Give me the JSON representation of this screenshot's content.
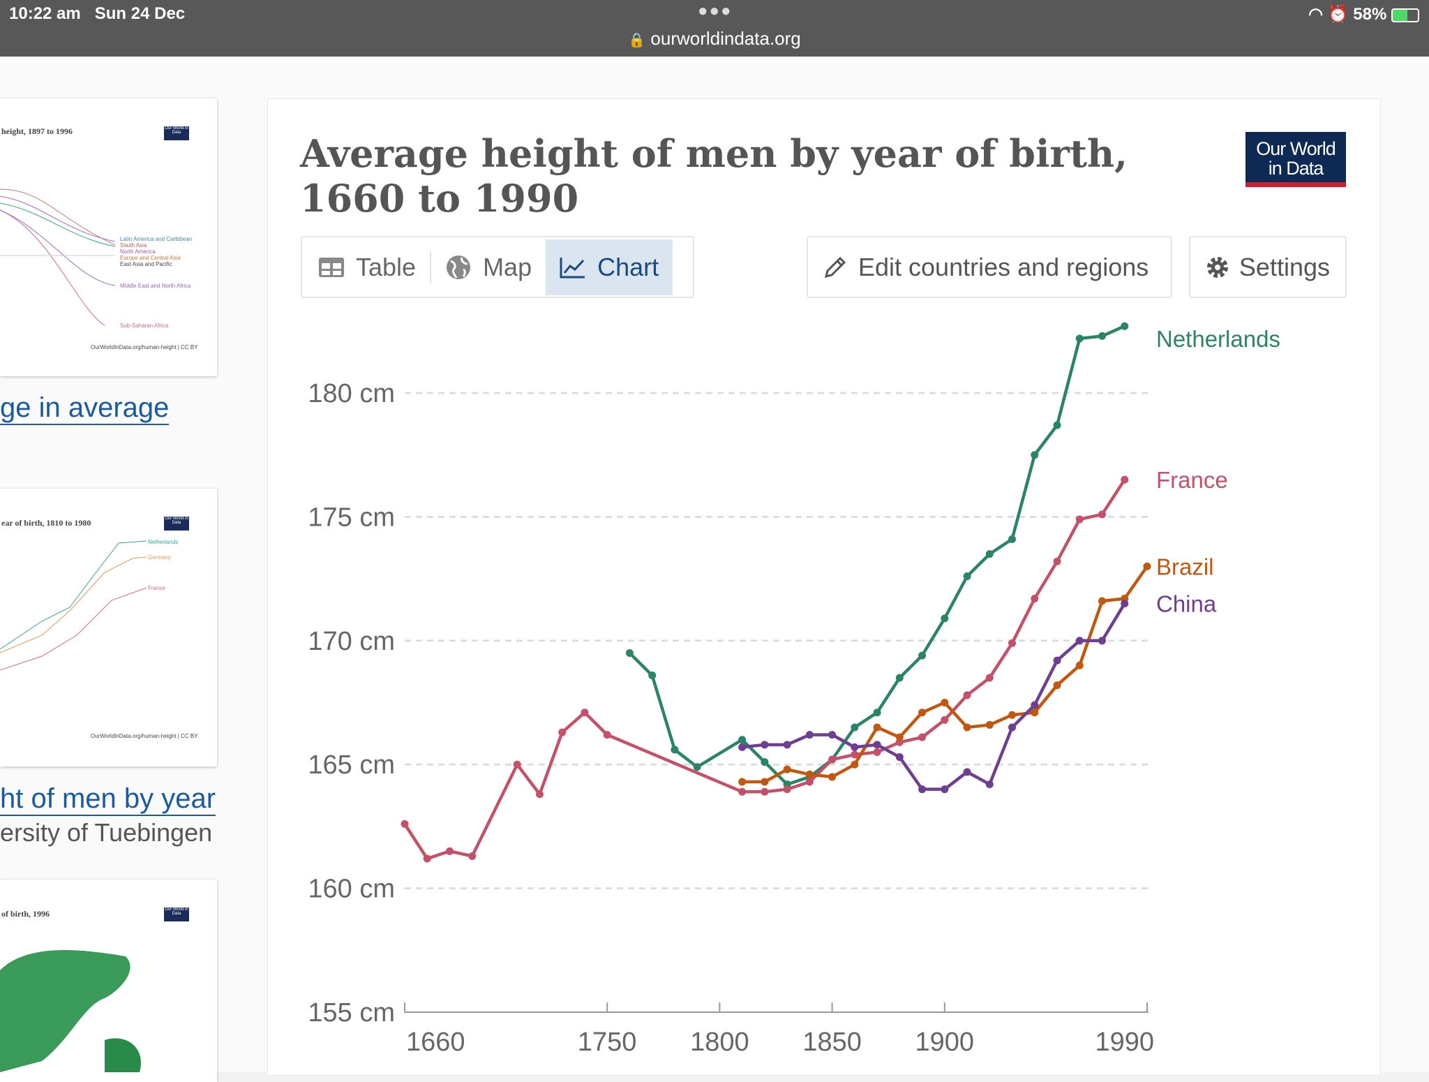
{
  "status_bar": {
    "time": "10:22 am",
    "date": "Sun 24 Dec",
    "url": "ourworldindata.org",
    "battery": "58%"
  },
  "sidebar": {
    "cards": [
      {
        "title": "height, 1897 to 1996",
        "legend": [
          "Latin America and Caribbean",
          "South Asia",
          "North America",
          "Europe and Central Asia",
          "East Asia and Pacific",
          "Middle East and North Africa",
          "Sub-Saharan Africa"
        ],
        "source": "OurWorldInData.org/human-height | CC BY"
      },
      {
        "title": "ear of birth, 1810 to 1980",
        "legend": [
          "Netherlands",
          "Germany",
          "France"
        ],
        "source": "OurWorldInData.org/human-height | CC BY"
      },
      {
        "title": "of birth, 1996"
      }
    ],
    "link1": "ge in average",
    "link2": "ht of men by year",
    "sub2": "ersity of Tuebingen"
  },
  "header": {
    "title": "Average height of men by year of birth, 1660 to 1990",
    "logo": "Our World in Data"
  },
  "tabs": [
    {
      "label": "Table",
      "icon": "table-icon"
    },
    {
      "label": "Map",
      "icon": "globe-icon"
    },
    {
      "label": "Chart",
      "icon": "line-chart-icon",
      "active": true
    }
  ],
  "buttons": {
    "edit": "Edit countries and regions",
    "settings": "Settings"
  },
  "colors": {
    "accent": "#dbe5f0",
    "Netherlands": "#2a8466",
    "France": "#c4506a",
    "Brazil": "#c2570f",
    "China": "#6d3e91"
  },
  "chart_data": {
    "type": "line",
    "title": "Average height of men by year of birth, 1660 to 1990",
    "ylim": [
      155,
      182.7
    ],
    "xlim": [
      1660,
      1990
    ],
    "yticks": [
      155,
      160,
      165,
      170,
      175,
      180
    ],
    "ytick_labels": [
      "155 cm",
      "160 cm",
      "165 cm",
      "170 cm",
      "175 cm",
      "180 cm"
    ],
    "xticks": [
      1660,
      1750,
      1800,
      1850,
      1900,
      1990
    ],
    "grid": "horizontal dashed",
    "legend": "right, inline labels",
    "series": [
      {
        "name": "Netherlands",
        "x": [
          1760,
          1770,
          1780,
          1790,
          1810,
          1820,
          1830,
          1840,
          1850,
          1860,
          1870,
          1880,
          1890,
          1900,
          1910,
          1920,
          1930,
          1940,
          1950,
          1960,
          1970,
          1980
        ],
        "y": [
          169.5,
          168.6,
          165.6,
          164.9,
          166.0,
          165.1,
          164.2,
          164.5,
          165.2,
          166.5,
          167.1,
          168.5,
          169.4,
          170.9,
          172.6,
          173.5,
          174.1,
          177.5,
          178.7,
          182.2,
          182.3,
          182.7
        ]
      },
      {
        "name": "France",
        "x": [
          1660,
          1670,
          1680,
          1690,
          1710,
          1720,
          1730,
          1740,
          1750,
          1810,
          1820,
          1830,
          1840,
          1850,
          1860,
          1870,
          1880,
          1890,
          1900,
          1910,
          1920,
          1930,
          1940,
          1950,
          1960,
          1970,
          1980
        ],
        "y": [
          162.6,
          161.2,
          161.5,
          161.3,
          165.0,
          163.8,
          166.3,
          167.1,
          166.2,
          163.9,
          163.9,
          164.0,
          164.3,
          165.2,
          165.4,
          165.5,
          165.9,
          166.1,
          166.8,
          167.8,
          168.5,
          169.9,
          171.7,
          173.2,
          174.9,
          175.1,
          176.5
        ]
      },
      {
        "name": "Brazil",
        "x": [
          1810,
          1820,
          1830,
          1840,
          1850,
          1860,
          1870,
          1880,
          1890,
          1900,
          1910,
          1920,
          1930,
          1940,
          1950,
          1960,
          1970,
          1980,
          1990
        ],
        "y": [
          164.3,
          164.3,
          164.8,
          164.6,
          164.5,
          165.0,
          166.5,
          166.1,
          167.1,
          167.5,
          166.5,
          166.6,
          167.0,
          167.1,
          168.2,
          169.0,
          171.6,
          171.7,
          173.0
        ]
      },
      {
        "name": "China",
        "x": [
          1810,
          1820,
          1830,
          1840,
          1850,
          1860,
          1870,
          1880,
          1890,
          1900,
          1910,
          1920,
          1930,
          1940,
          1950,
          1960,
          1970,
          1980
        ],
        "y": [
          165.7,
          165.8,
          165.8,
          166.2,
          166.2,
          165.7,
          165.8,
          165.3,
          164.0,
          164.0,
          164.7,
          164.2,
          166.5,
          167.4,
          169.2,
          170.0,
          170.0,
          171.5
        ]
      }
    ]
  }
}
